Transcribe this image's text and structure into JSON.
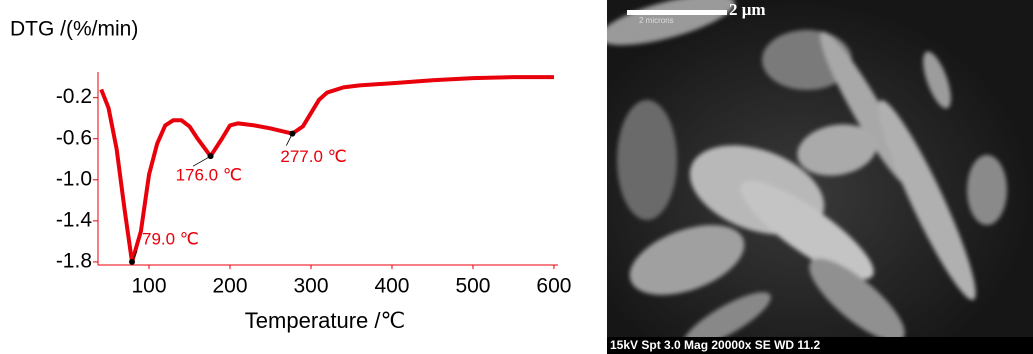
{
  "chart_data": {
    "type": "line",
    "y_label": "DTG /(%/min)",
    "x_label": "Temperature /℃",
    "x": [
      41,
      50,
      60,
      70,
      79,
      90,
      100,
      110,
      120,
      130,
      140,
      150,
      160,
      176,
      190,
      200,
      210,
      230,
      250,
      277,
      290,
      300,
      310,
      320,
      340,
      360,
      400,
      450,
      500,
      550,
      600
    ],
    "series": [
      {
        "color": "#e8000b",
        "values": [
          -0.12,
          -0.3,
          -0.7,
          -1.3,
          -1.8,
          -1.5,
          -0.95,
          -0.65,
          -0.47,
          -0.42,
          -0.42,
          -0.48,
          -0.6,
          -0.77,
          -0.6,
          -0.47,
          -0.45,
          -0.47,
          -0.5,
          -0.55,
          -0.48,
          -0.35,
          -0.22,
          -0.15,
          -0.1,
          -0.08,
          -0.06,
          -0.03,
          -0.01,
          0.0,
          0.0
        ]
      }
    ],
    "xlim": [
      37,
      605
    ],
    "xticks": [
      100,
      200,
      300,
      400,
      500,
      600
    ],
    "ylim": [
      -1.83,
      0.05
    ],
    "yticks": [
      -0.2,
      -0.6,
      {
        "value": -1,
        "label": "-1.0"
      },
      -1.4,
      -1.8
    ],
    "annotations": [
      {
        "text": "79.0 ℃",
        "x": 79,
        "y": -1.8
      },
      {
        "text": "176.0 ℃",
        "x": 176,
        "y": -0.77
      },
      {
        "text": "277.0 ℃",
        "x": 277,
        "y": -0.55
      }
    ]
  },
  "image": {
    "scale_bar_small": "2 microns",
    "scale_bar": "2 μm",
    "caption": "15kV Spt 3.0 Mag 20000x SE WD 11.2"
  }
}
